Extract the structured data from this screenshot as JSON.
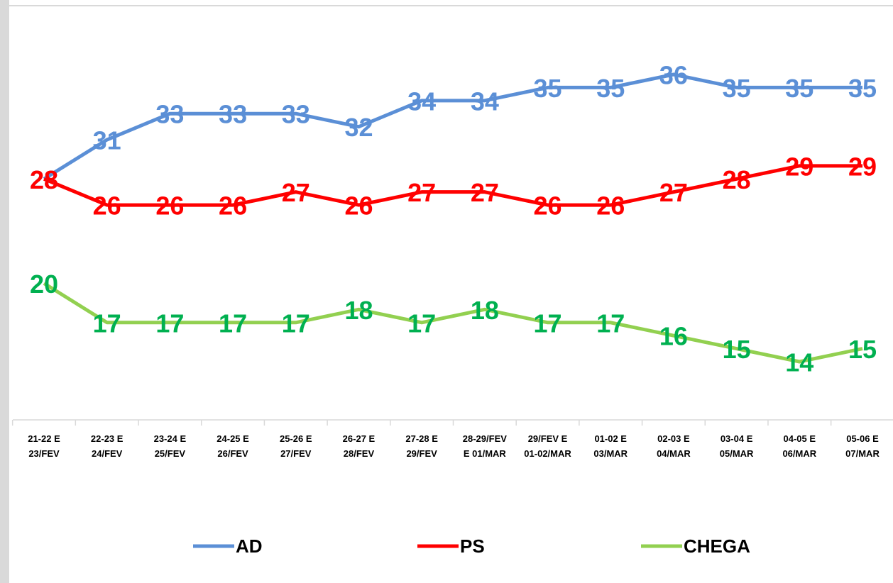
{
  "chart_data": {
    "type": "line",
    "categories": [
      "21-22 E\n23/FEV",
      "22-23 E\n24/FEV",
      "23-24 E\n25/FEV",
      "24-25 E\n26/FEV",
      "25-26 E\n27/FEV",
      "26-27 E\n28/FEV",
      "27-28 E\n29/FEV",
      "28-29/FEV\nE 01/MAR",
      "29/FEV E\n01-02/MAR",
      "01-02 E\n03/MAR",
      "02-03 E\n04/MAR",
      "03-04 E\n05/MAR",
      "04-05 E\n06/MAR",
      "05-06 E\n07/MAR"
    ],
    "series": [
      {
        "name": "AD",
        "color": "#5b8fd6",
        "label_color": "#5b8fd6",
        "values": [
          28,
          31,
          33,
          33,
          33,
          32,
          34,
          34,
          35,
          35,
          36,
          35,
          35,
          35
        ]
      },
      {
        "name": "PS",
        "color": "#ff0000",
        "label_color": "#ff0000",
        "values": [
          28,
          26,
          26,
          26,
          27,
          26,
          27,
          27,
          26,
          26,
          27,
          28,
          29,
          29
        ]
      },
      {
        "name": "CHEGA",
        "color": "#92d050",
        "label_color": "#00b050",
        "values": [
          20,
          17,
          17,
          17,
          17,
          18,
          17,
          18,
          17,
          17,
          16,
          15,
          14,
          15
        ]
      }
    ],
    "legend": "bottom"
  }
}
